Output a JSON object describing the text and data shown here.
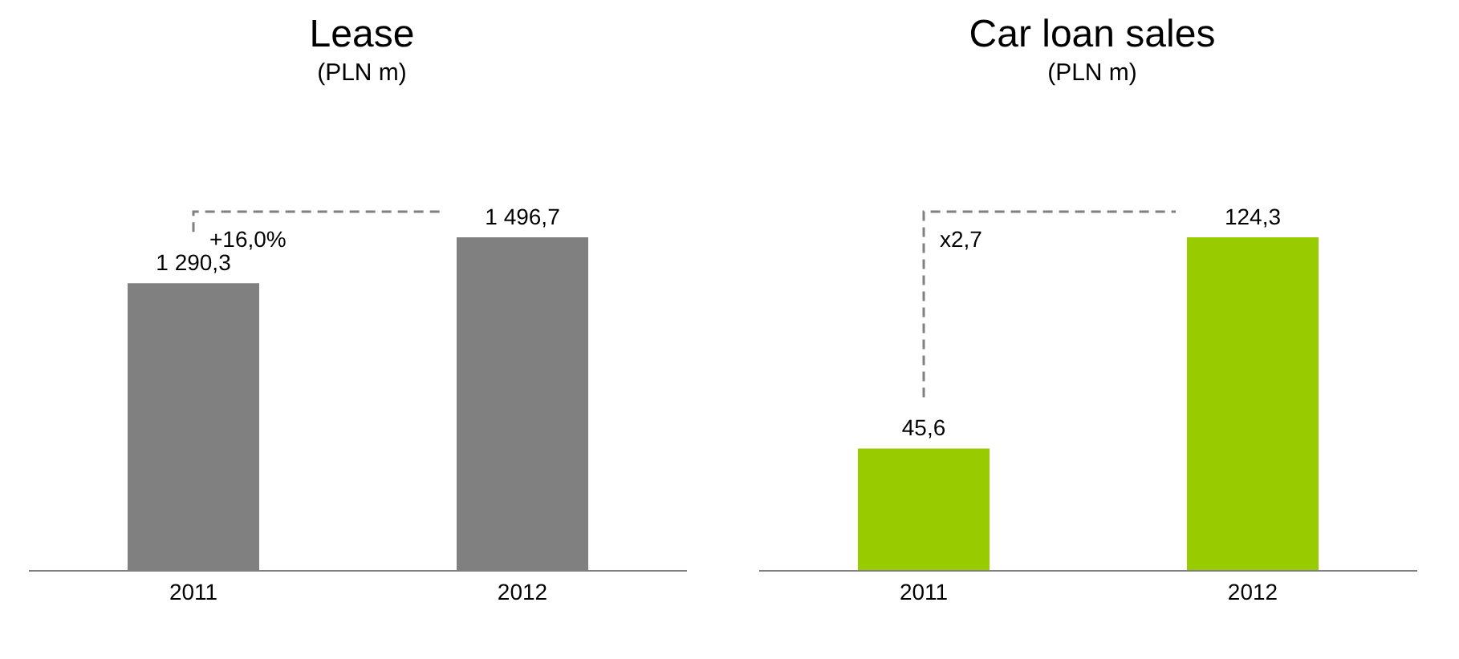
{
  "chart_data": [
    {
      "type": "bar",
      "title": "Lease",
      "subtitle": "(PLN m)",
      "categories": [
        "2011",
        "2012"
      ],
      "values": [
        1290.3,
        1496.7
      ],
      "value_labels": [
        "1 290,3",
        "1 496,7"
      ],
      "color": "#808080",
      "annotations": [
        "+16,0%"
      ]
    },
    {
      "type": "bar",
      "title": "Car loan sales",
      "subtitle": "(PLN m)",
      "categories": [
        "2011",
        "2012"
      ],
      "values": [
        45.6,
        124.3
      ],
      "value_labels": [
        "45,6",
        "124,3"
      ],
      "color": "#99cc00",
      "annotations": [
        "x2,7"
      ]
    }
  ]
}
